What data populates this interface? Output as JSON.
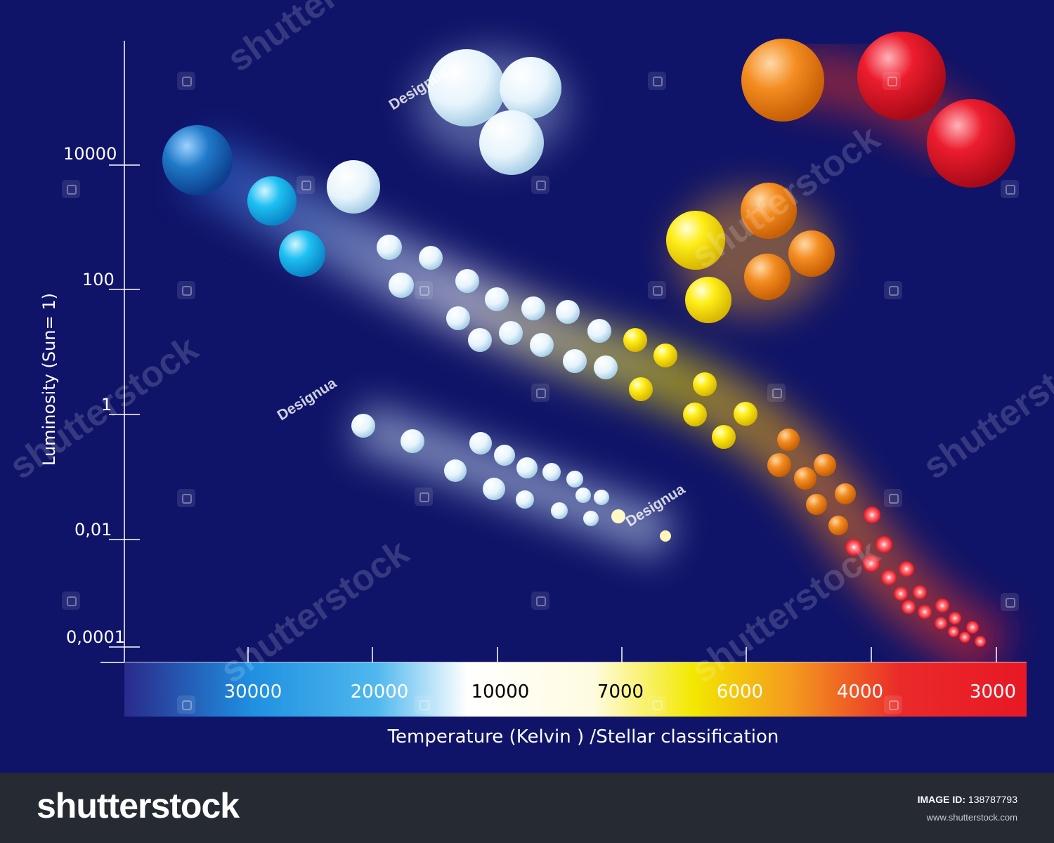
{
  "figure": {
    "y_axis_title": "Luminosity (Sun= 1)",
    "y_ticks": [
      "10000",
      "100",
      "1",
      "0,01",
      "0,0001"
    ],
    "x_axis_title": "Temperature (Kelvin ) /Stellar classification",
    "temperature_labels": [
      {
        "text": "30000",
        "color": "#ffffff"
      },
      {
        "text": "20000",
        "color": "#ffffff"
      },
      {
        "text": "10000",
        "color": "#000000"
      },
      {
        "text": "7000",
        "color": "#000000"
      },
      {
        "text": "6000",
        "color": "#ffffff"
      },
      {
        "text": "4000",
        "color": "#ffffff"
      },
      {
        "text": "3000",
        "color": "#ffffff"
      }
    ],
    "designer_marks": [
      "Designua",
      "Designua",
      "Designua"
    ]
  },
  "colors": {
    "background": "#101468",
    "blue_giant": "#1a6fc2",
    "light_blue": "#14b4ea",
    "blue_white": "#dff1fb",
    "yellow": "#f4e400",
    "orange": "#f08a1c",
    "red": "#e8182a"
  },
  "watermark": {
    "text": "shutterstock",
    "footer_logo": "shutterstock",
    "image_id_label": "IMAGE ID:",
    "image_id": "138787793",
    "url": "www.shutterstock.com"
  }
}
